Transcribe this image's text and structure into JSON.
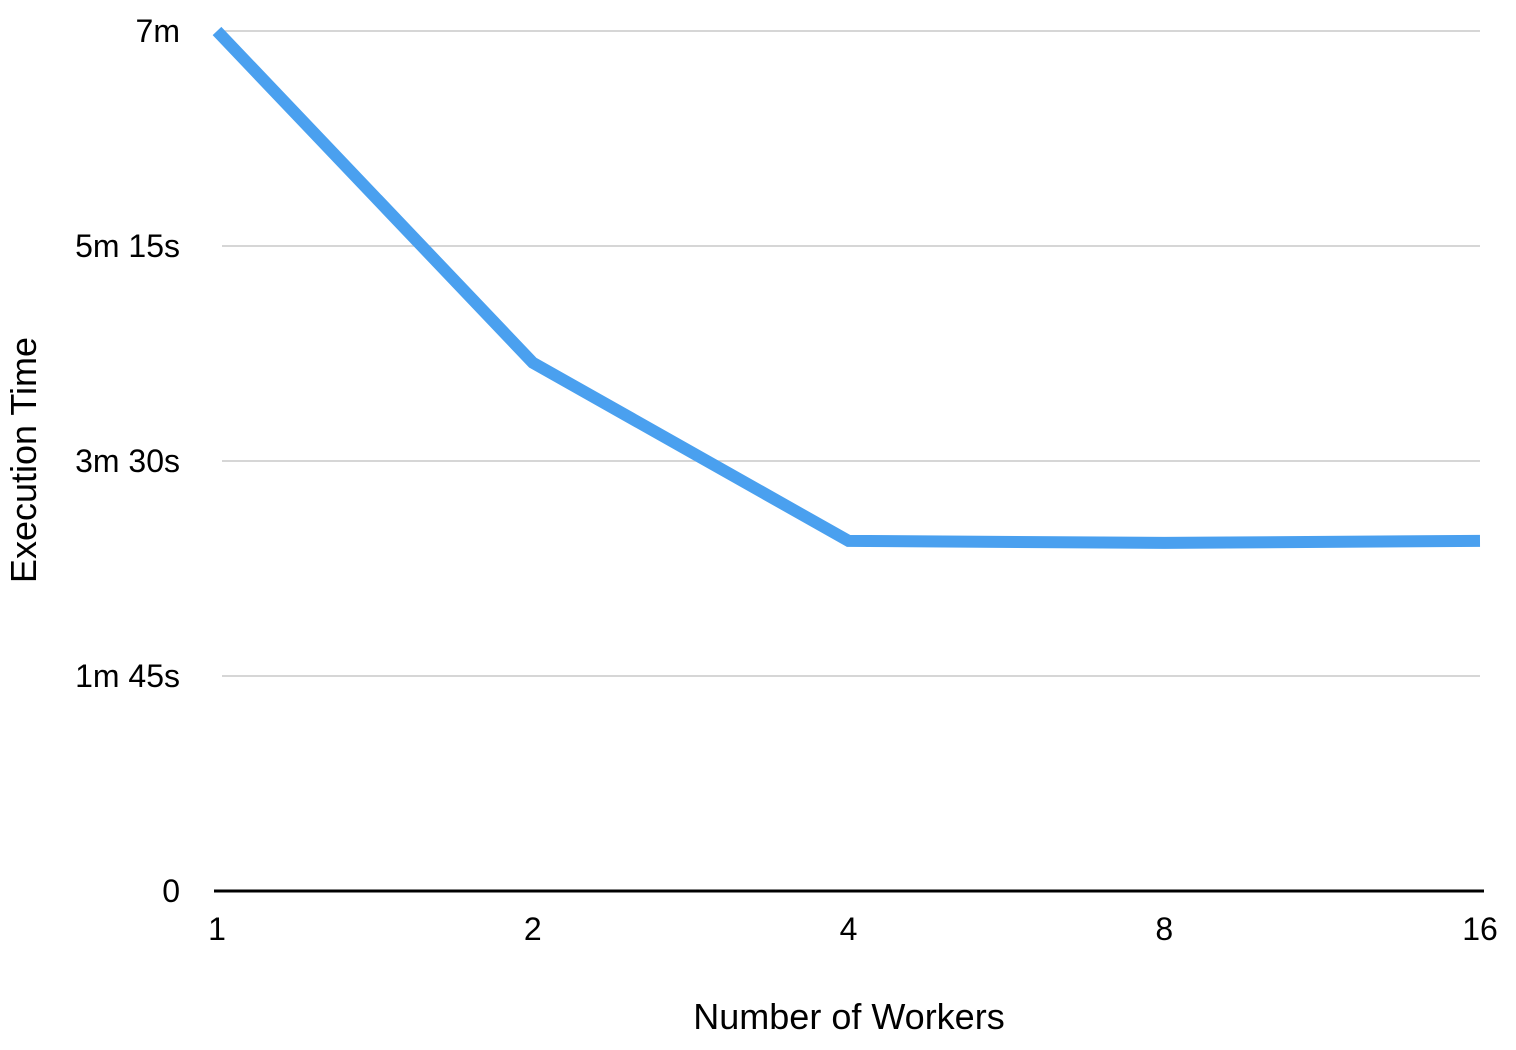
{
  "chart_data": {
    "type": "line",
    "title": "",
    "xlabel": "Number of Workers",
    "ylabel": "Execution Time",
    "x_scale": "log2",
    "x": [
      1,
      2,
      4,
      8,
      16
    ],
    "x_tick_labels": [
      "1",
      "2",
      "4",
      "8",
      "16"
    ],
    "y_unit": "seconds",
    "y_ticks": [
      0,
      105,
      210,
      315,
      420
    ],
    "y_tick_labels": [
      "0",
      "1m 45s",
      "3m 30s",
      "5m 15s",
      "7m"
    ],
    "ylim": [
      0,
      420
    ],
    "grid": true,
    "legend": "none",
    "series": [
      {
        "values": [
          420,
          258,
          171,
          170,
          171
        ],
        "color": "#4aa0ef"
      }
    ],
    "colors": {
      "line": "#4aa0ef",
      "grid": "#c8c8c8",
      "axis": "#000000",
      "text": "#000000"
    }
  }
}
